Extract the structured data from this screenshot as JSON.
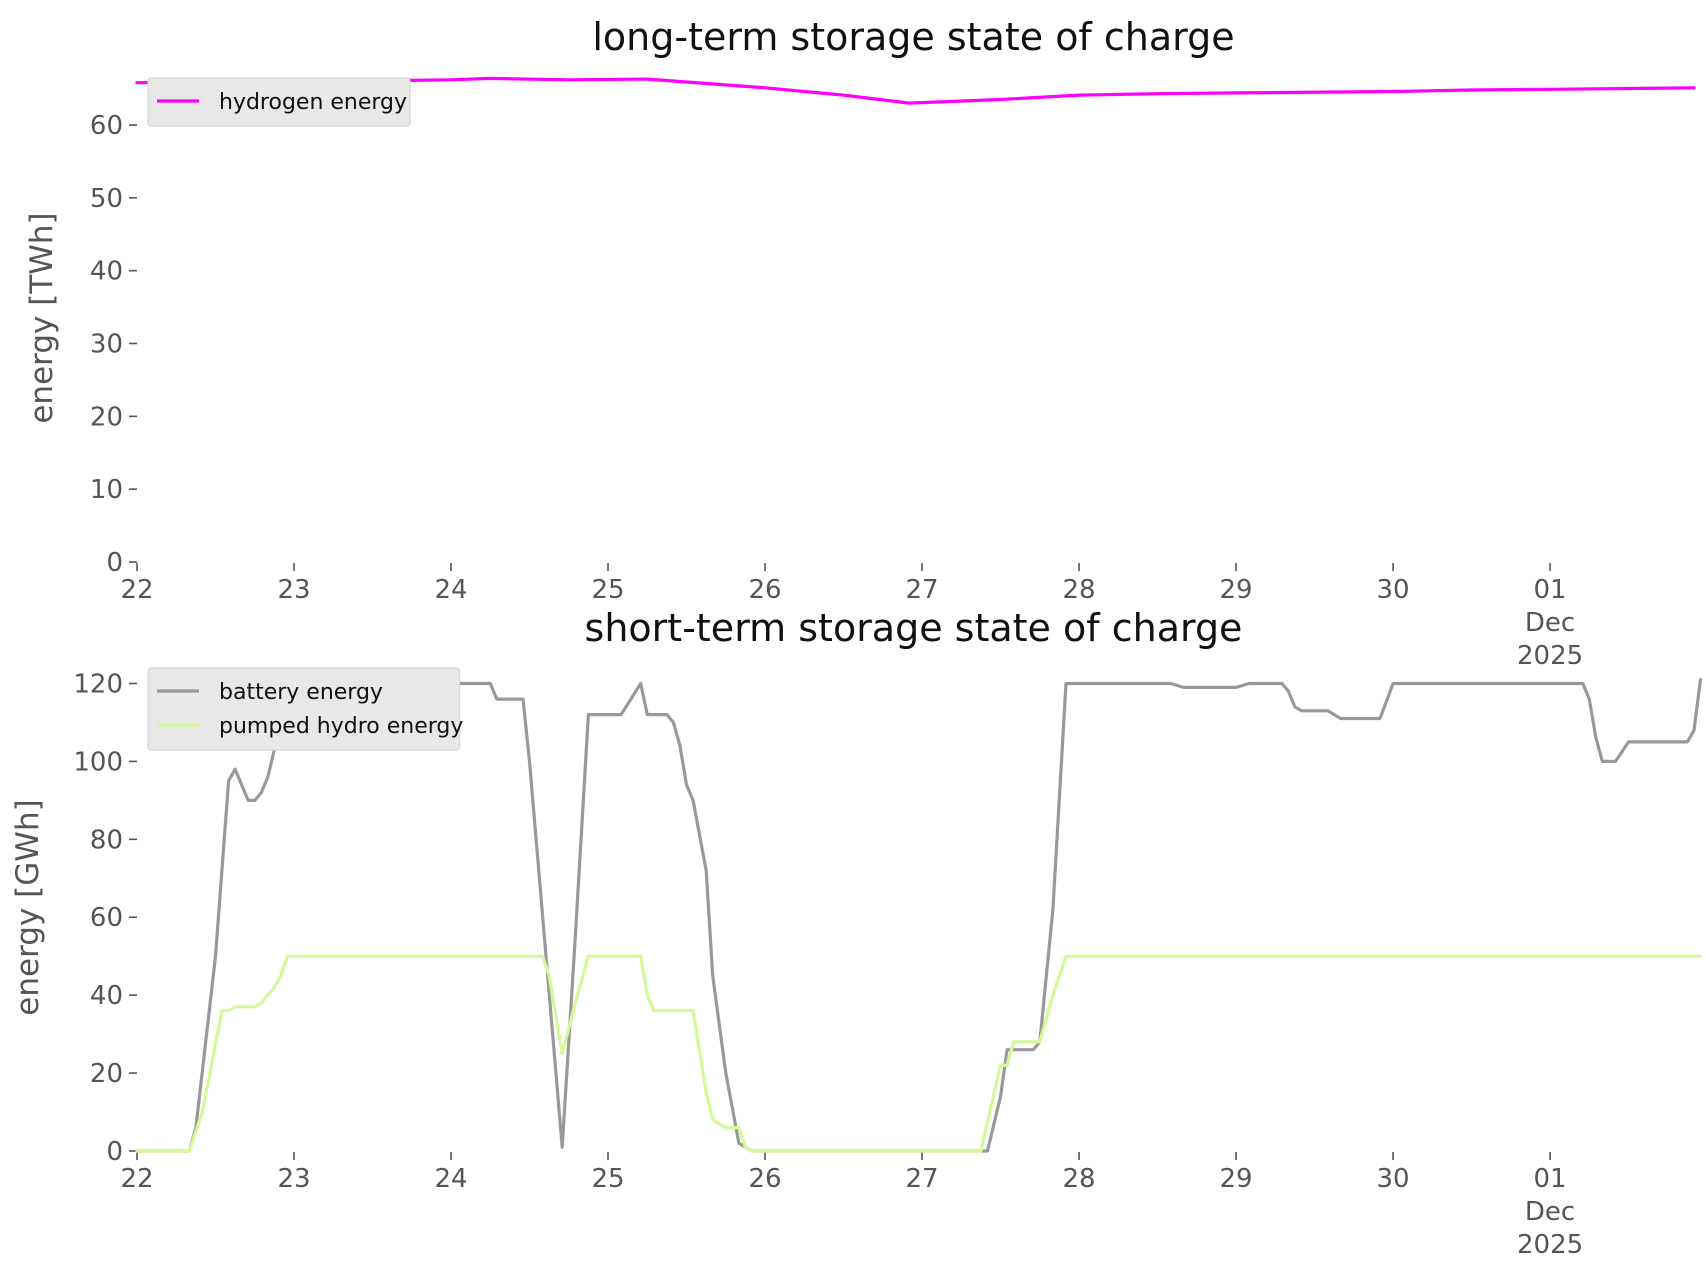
{
  "chart_data": [
    {
      "type": "line",
      "title": "long-term storage state of charge",
      "xlabel": "",
      "ylabel": "energy [TWh]",
      "ylim": [
        0,
        67
      ],
      "yticks": [
        0,
        10,
        20,
        30,
        40,
        50,
        60
      ],
      "x_axis": {
        "type": "date",
        "range": [
          "2025-11-22",
          "2025-12-01 22:00"
        ],
        "ticks": [
          {
            "x": "2025-11-22",
            "lines": [
              "22"
            ]
          },
          {
            "x": "2025-11-23",
            "lines": [
              "23"
            ]
          },
          {
            "x": "2025-11-24",
            "lines": [
              "24"
            ]
          },
          {
            "x": "2025-11-25",
            "lines": [
              "25"
            ]
          },
          {
            "x": "2025-11-26",
            "lines": [
              "26"
            ]
          },
          {
            "x": "2025-11-27",
            "lines": [
              "27"
            ]
          },
          {
            "x": "2025-11-28",
            "lines": [
              "28"
            ]
          },
          {
            "x": "2025-11-29",
            "lines": [
              "29"
            ]
          },
          {
            "x": "2025-11-30",
            "lines": [
              "30"
            ]
          },
          {
            "x": "2025-12-01",
            "lines": [
              "01",
              "Dec",
              "2025"
            ]
          },
          {
            "x": "2025-12-02",
            "lines": []
          }
        ]
      },
      "grid": false,
      "legend_position": "top-left",
      "series": [
        {
          "name": "hydrogen energy",
          "color": "#ff00ff",
          "points": [
            [
              "2025-11-22 00:00",
              65.8
            ],
            [
              "2025-11-23 00:00",
              65.9
            ],
            [
              "2025-11-24 00:00",
              66.2
            ],
            [
              "2025-11-24 06:00",
              66.4
            ],
            [
              "2025-11-24 18:00",
              66.2
            ],
            [
              "2025-11-25 06:00",
              66.3
            ],
            [
              "2025-11-26 00:00",
              65.1
            ],
            [
              "2025-11-26 12:00",
              64.1
            ],
            [
              "2025-11-26 22:00",
              63.0
            ],
            [
              "2025-11-27 12:00",
              63.5
            ],
            [
              "2025-11-28 00:00",
              64.1
            ],
            [
              "2025-11-28 12:00",
              64.3
            ],
            [
              "2025-11-29 00:00",
              64.4
            ],
            [
              "2025-11-30 00:00",
              64.6
            ],
            [
              "2025-11-30 12:00",
              64.8
            ],
            [
              "2025-12-01 00:00",
              64.9
            ],
            [
              "2025-12-01 22:00",
              65.1
            ]
          ]
        }
      ]
    },
    {
      "type": "line",
      "title": "short-term storage state of charge",
      "xlabel": "",
      "ylabel": "energy [GWh]",
      "ylim": [
        0,
        125
      ],
      "yticks": [
        0,
        20,
        40,
        60,
        80,
        100,
        120
      ],
      "x_axis": {
        "type": "date",
        "range": [
          "2025-11-22",
          "2025-12-01 22:00"
        ],
        "ticks": [
          {
            "x": "2025-11-22",
            "lines": [
              "22"
            ]
          },
          {
            "x": "2025-11-23",
            "lines": [
              "23"
            ]
          },
          {
            "x": "2025-11-24",
            "lines": [
              "24"
            ]
          },
          {
            "x": "2025-11-25",
            "lines": [
              "25"
            ]
          },
          {
            "x": "2025-11-26",
            "lines": [
              "26"
            ]
          },
          {
            "x": "2025-11-27",
            "lines": [
              "27"
            ]
          },
          {
            "x": "2025-11-28",
            "lines": [
              "28"
            ]
          },
          {
            "x": "2025-11-29",
            "lines": [
              "29"
            ]
          },
          {
            "x": "2025-11-30",
            "lines": [
              "30"
            ]
          },
          {
            "x": "2025-12-01",
            "lines": [
              "01",
              "Dec",
              "2025"
            ]
          },
          {
            "x": "2025-12-02",
            "lines": []
          }
        ]
      },
      "grid": false,
      "legend_position": "top-left",
      "series": [
        {
          "name": "battery energy",
          "color": "#999999",
          "points": [
            [
              "2025-11-22 00:00",
              0
            ],
            [
              "2025-11-22 08:00",
              0
            ],
            [
              "2025-11-22 09:00",
              6
            ],
            [
              "2025-11-22 12:00",
              50
            ],
            [
              "2025-11-22 14:00",
              95
            ],
            [
              "2025-11-22 15:00",
              98
            ],
            [
              "2025-11-22 17:00",
              90
            ],
            [
              "2025-11-22 18:00",
              90
            ],
            [
              "2025-11-22 19:00",
              92
            ],
            [
              "2025-11-22 20:00",
              96
            ],
            [
              "2025-11-22 22:00",
              110
            ],
            [
              "2025-11-23 00:00",
              120
            ],
            [
              "2025-11-23 12:00",
              120
            ],
            [
              "2025-11-24 00:00",
              120
            ],
            [
              "2025-11-24 06:00",
              120
            ],
            [
              "2025-11-24 07:00",
              116
            ],
            [
              "2025-11-24 11:00",
              116
            ],
            [
              "2025-11-24 12:00",
              100
            ],
            [
              "2025-11-24 17:00",
              1
            ],
            [
              "2025-11-24 19:00",
              55
            ],
            [
              "2025-11-24 21:00",
              112
            ],
            [
              "2025-11-25 02:00",
              112
            ],
            [
              "2025-11-25 05:00",
              120
            ],
            [
              "2025-11-25 06:00",
              112
            ],
            [
              "2025-11-25 09:00",
              112
            ],
            [
              "2025-11-25 10:00",
              110
            ],
            [
              "2025-11-25 11:00",
              104
            ],
            [
              "2025-11-25 12:00",
              94
            ],
            [
              "2025-11-25 13:00",
              90
            ],
            [
              "2025-11-25 15:00",
              72
            ],
            [
              "2025-11-25 16:00",
              45
            ],
            [
              "2025-11-25 18:00",
              20
            ],
            [
              "2025-11-25 20:00",
              2
            ],
            [
              "2025-11-25 22:00",
              0
            ],
            [
              "2025-11-26 12:00",
              0
            ],
            [
              "2025-11-27 10:00",
              0
            ],
            [
              "2025-11-27 12:00",
              14
            ],
            [
              "2025-11-27 13:00",
              26
            ],
            [
              "2025-11-27 17:00",
              26
            ],
            [
              "2025-11-27 18:00",
              28
            ],
            [
              "2025-11-27 20:00",
              62
            ],
            [
              "2025-11-27 22:00",
              120
            ],
            [
              "2025-11-28 14:00",
              120
            ],
            [
              "2025-11-28 16:00",
              119
            ],
            [
              "2025-11-29 00:00",
              119
            ],
            [
              "2025-11-29 02:00",
              120
            ],
            [
              "2025-11-29 07:00",
              120
            ],
            [
              "2025-11-29 08:00",
              118
            ],
            [
              "2025-11-29 09:00",
              114
            ],
            [
              "2025-11-29 10:00",
              113
            ],
            [
              "2025-11-29 14:00",
              113
            ],
            [
              "2025-11-29 15:00",
              112
            ],
            [
              "2025-11-29 16:00",
              111
            ],
            [
              "2025-11-29 22:00",
              111
            ],
            [
              "2025-11-30 00:00",
              120
            ],
            [
              "2025-12-01 05:00",
              120
            ],
            [
              "2025-12-01 06:00",
              116
            ],
            [
              "2025-12-01 07:00",
              106
            ],
            [
              "2025-12-01 08:00",
              100
            ],
            [
              "2025-12-01 10:00",
              100
            ],
            [
              "2025-12-01 12:00",
              105
            ],
            [
              "2025-12-01 21:00",
              105
            ],
            [
              "2025-12-01 22:00",
              108
            ],
            [
              "2025-12-01 23:00",
              121
            ]
          ]
        },
        {
          "name": "pumped hydro energy",
          "color": "#d4f99a",
          "points": [
            [
              "2025-11-22 00:00",
              0
            ],
            [
              "2025-11-22 08:00",
              0
            ],
            [
              "2025-11-22 10:00",
              10
            ],
            [
              "2025-11-22 13:00",
              36
            ],
            [
              "2025-11-22 14:00",
              36
            ],
            [
              "2025-11-22 15:00",
              37
            ],
            [
              "2025-11-22 18:00",
              37
            ],
            [
              "2025-11-22 19:00",
              38
            ],
            [
              "2025-11-22 21:00",
              42
            ],
            [
              "2025-11-22 22:00",
              45
            ],
            [
              "2025-11-22 23:00",
              50
            ],
            [
              "2025-11-24 14:00",
              50
            ],
            [
              "2025-11-24 15:00",
              45
            ],
            [
              "2025-11-24 17:00",
              25
            ],
            [
              "2025-11-24 19:00",
              38
            ],
            [
              "2025-11-24 21:00",
              50
            ],
            [
              "2025-11-25 05:00",
              50
            ],
            [
              "2025-11-25 06:00",
              40
            ],
            [
              "2025-11-25 07:00",
              36
            ],
            [
              "2025-11-25 13:00",
              36
            ],
            [
              "2025-11-25 15:00",
              15
            ],
            [
              "2025-11-25 16:00",
              8
            ],
            [
              "2025-11-25 17:00",
              7
            ],
            [
              "2025-11-25 18:00",
              6
            ],
            [
              "2025-11-25 20:00",
              6
            ],
            [
              "2025-11-25 21:00",
              1
            ],
            [
              "2025-11-25 22:00",
              0
            ],
            [
              "2025-11-27 09:00",
              0
            ],
            [
              "2025-11-27 12:00",
              22
            ],
            [
              "2025-11-27 13:00",
              22
            ],
            [
              "2025-11-27 14:00",
              28
            ],
            [
              "2025-11-27 18:00",
              28
            ],
            [
              "2025-11-27 20:00",
              40
            ],
            [
              "2025-11-27 22:00",
              50
            ],
            [
              "2025-12-01 23:00",
              50
            ]
          ]
        }
      ]
    }
  ]
}
